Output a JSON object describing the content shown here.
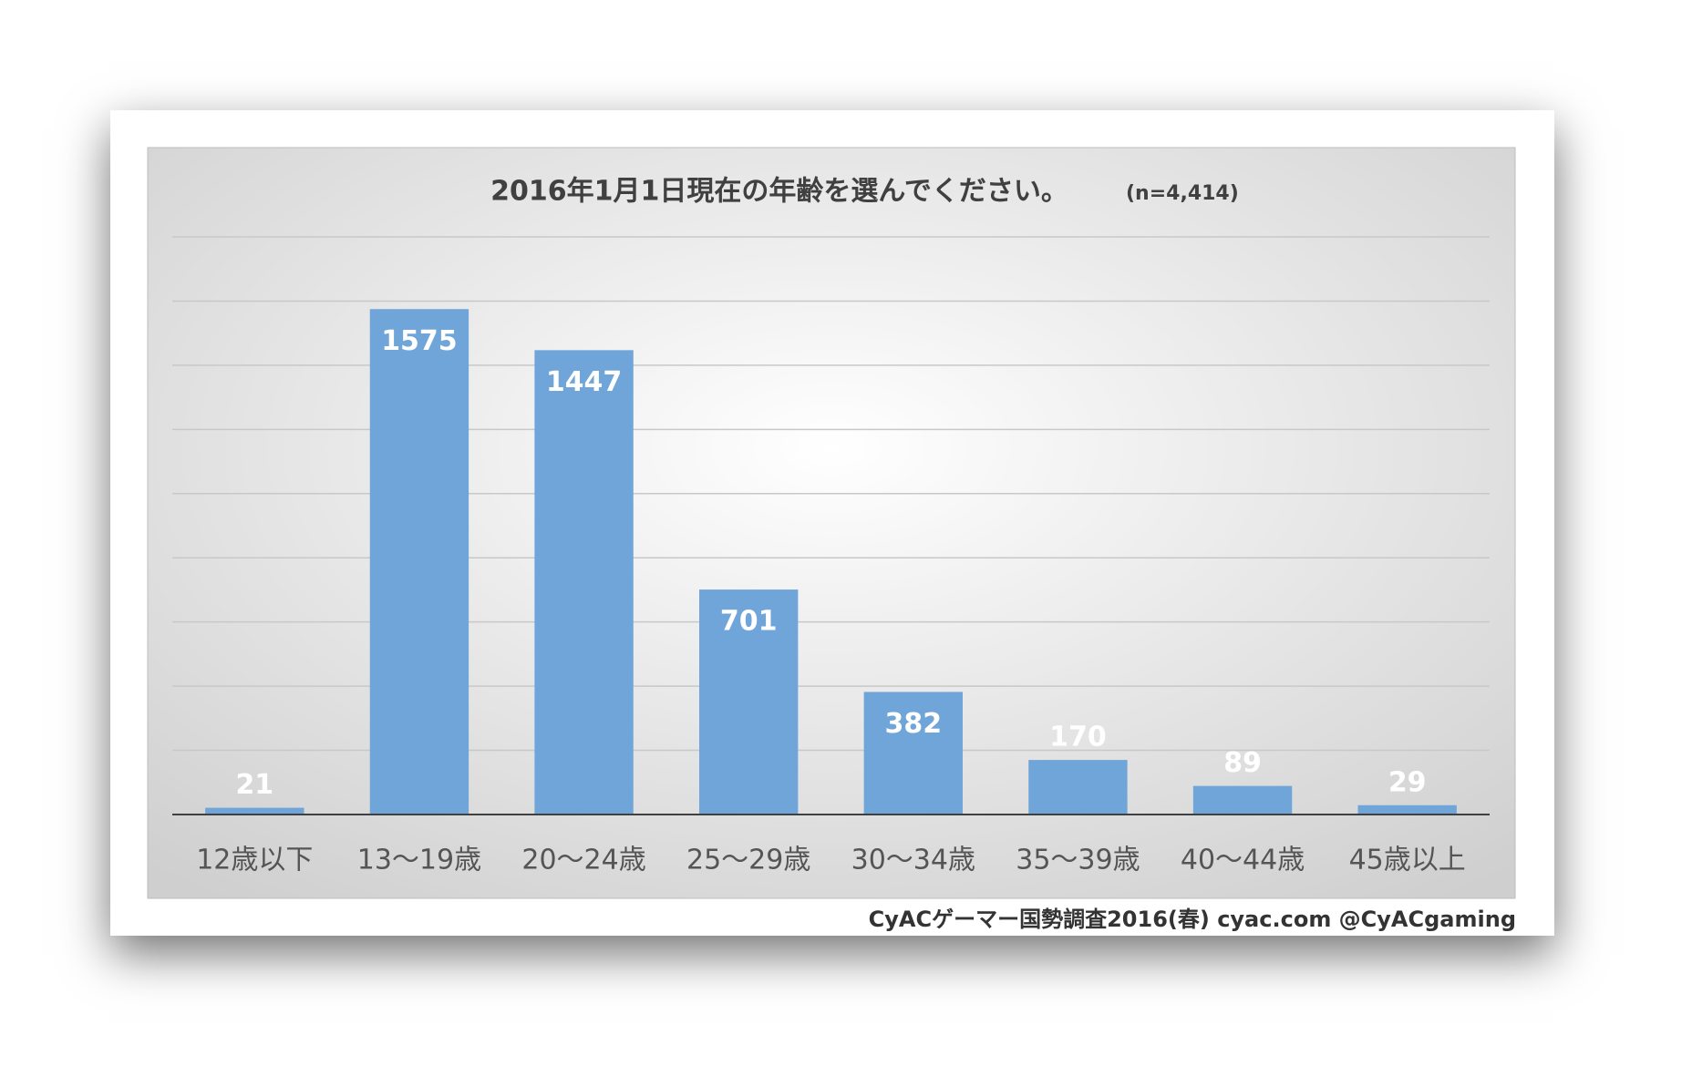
{
  "chart_data": {
    "type": "bar",
    "title": "2016年1月1日現在の年齢を選んでください。",
    "subtitle": "(n=4,414)",
    "source": "CyACゲーマー国勢調査2016(春) cyac.com @CyACgaming",
    "categories": [
      "12歳以下",
      "13〜19歳",
      "20〜24歳",
      "25〜29歳",
      "30〜34歳",
      "35〜39歳",
      "40〜44歳",
      "45歳以上"
    ],
    "values": [
      21,
      1575,
      1447,
      701,
      382,
      170,
      89,
      29
    ],
    "color": "#6fa5d8",
    "ylim": [
      0,
      1800
    ],
    "yticks": [
      0,
      200,
      400,
      600,
      800,
      1000,
      1200,
      1400,
      1600,
      1800
    ],
    "grid": true
  }
}
